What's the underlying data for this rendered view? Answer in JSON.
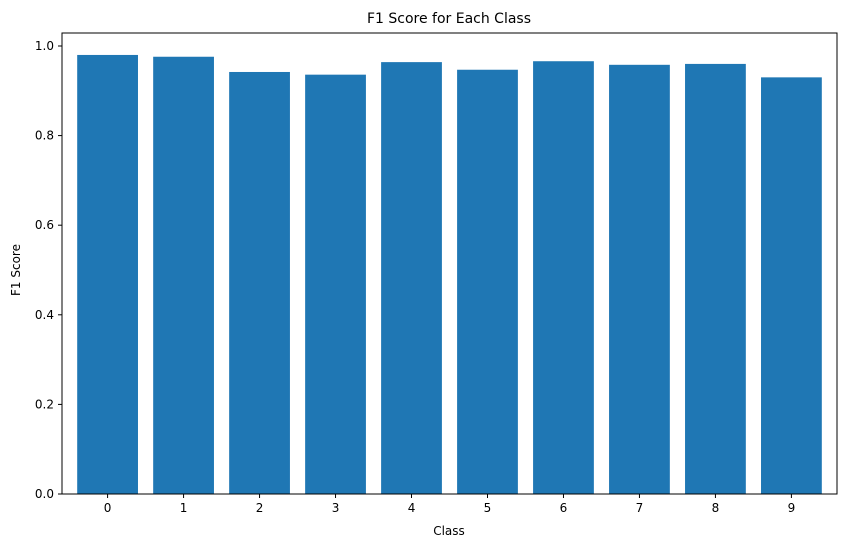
{
  "chart_data": {
    "type": "bar",
    "title": "F1 Score for Each Class",
    "xlabel": "Class",
    "ylabel": "F1 Score",
    "categories": [
      "0",
      "1",
      "2",
      "3",
      "4",
      "5",
      "6",
      "7",
      "8",
      "9"
    ],
    "values": [
      0.98,
      0.976,
      0.942,
      0.936,
      0.964,
      0.947,
      0.966,
      0.958,
      0.96,
      0.93
    ],
    "ylim": [
      0,
      1.029
    ],
    "yticks": [
      0.0,
      0.2,
      0.4,
      0.6,
      0.8,
      1.0
    ],
    "ytick_labels": [
      "0.0",
      "0.2",
      "0.4",
      "0.6",
      "0.8",
      "1.0"
    ],
    "grid": false,
    "bar_color": "#1f77b4"
  }
}
